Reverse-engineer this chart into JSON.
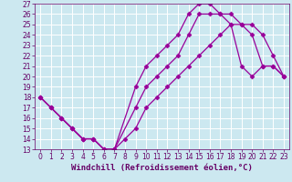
{
  "xlabel": "Windchill (Refroidissement éolien,°C)",
  "background_color": "#cce8f0",
  "grid_color": "#ffffff",
  "line_color": "#990099",
  "xlim": [
    -0.5,
    23.5
  ],
  "ylim": [
    13,
    27
  ],
  "xticks": [
    0,
    1,
    2,
    3,
    4,
    5,
    6,
    7,
    8,
    9,
    10,
    11,
    12,
    13,
    14,
    15,
    16,
    17,
    18,
    19,
    20,
    21,
    22,
    23
  ],
  "yticks": [
    13,
    14,
    15,
    16,
    17,
    18,
    19,
    20,
    21,
    22,
    23,
    24,
    25,
    26,
    27
  ],
  "line1_x": [
    0,
    1,
    2,
    3,
    4,
    5,
    6,
    7,
    9,
    10,
    11,
    12,
    13,
    14,
    15,
    16,
    17,
    18,
    19,
    20,
    21,
    22,
    23
  ],
  "line1_y": [
    18,
    17,
    16,
    15,
    14,
    14,
    13,
    13,
    19,
    21,
    22,
    23,
    24,
    26,
    27,
    27,
    26,
    25,
    21,
    20,
    21,
    21,
    20
  ],
  "line2_x": [
    0,
    1,
    2,
    3,
    4,
    5,
    6,
    7,
    9,
    10,
    11,
    12,
    13,
    14,
    15,
    16,
    17,
    18,
    19,
    20,
    21,
    22,
    23
  ],
  "line2_y": [
    18,
    17,
    16,
    15,
    14,
    14,
    13,
    13,
    17,
    19,
    20,
    21,
    22,
    24,
    26,
    26,
    26,
    26,
    25,
    24,
    21,
    21,
    20
  ],
  "line3_x": [
    0,
    1,
    2,
    3,
    4,
    5,
    6,
    7,
    8,
    9,
    10,
    11,
    12,
    13,
    14,
    15,
    16,
    17,
    18,
    19,
    20,
    21,
    22,
    23
  ],
  "line3_y": [
    18,
    17,
    16,
    15,
    14,
    14,
    13,
    13,
    14,
    15,
    17,
    18,
    19,
    20,
    21,
    22,
    23,
    24,
    25,
    25,
    25,
    24,
    22,
    20
  ],
  "marker": "D",
  "markersize": 2.5,
  "linewidth": 0.9,
  "tick_fontsize": 5.5,
  "xlabel_fontsize": 6.5
}
